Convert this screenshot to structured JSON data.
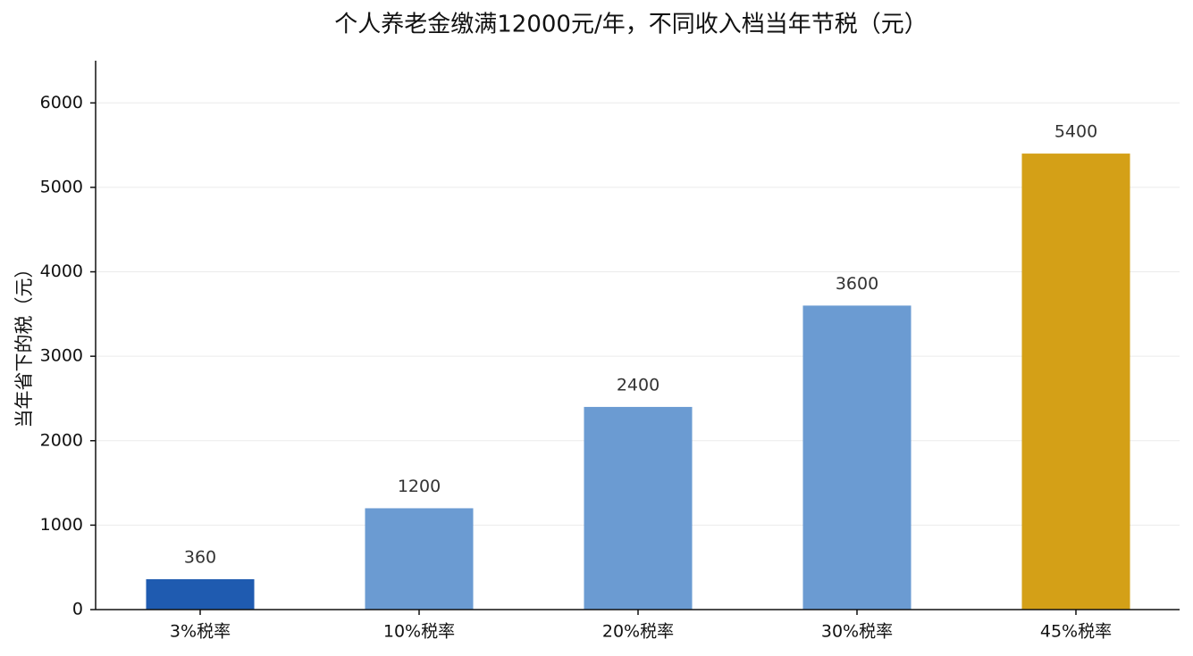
{
  "chart_data": {
    "type": "bar",
    "title": "个人养老金缴满12000元/年，不同收入档当年节税（元）",
    "ylabel": "当年省下的税（元）",
    "categories": [
      "3%税率",
      "10%税率",
      "20%税率",
      "30%税率",
      "45%税率"
    ],
    "values": [
      360,
      1200,
      2400,
      3600,
      5400
    ],
    "colors": [
      "#1f5bb0",
      "#6b9bd2",
      "#6b9bd2",
      "#6b9bd2",
      "#d4a017"
    ],
    "ylim": [
      0,
      6500
    ],
    "yticks": [
      0,
      1000,
      2000,
      3000,
      4000,
      5000,
      6000
    ],
    "grid": true
  }
}
